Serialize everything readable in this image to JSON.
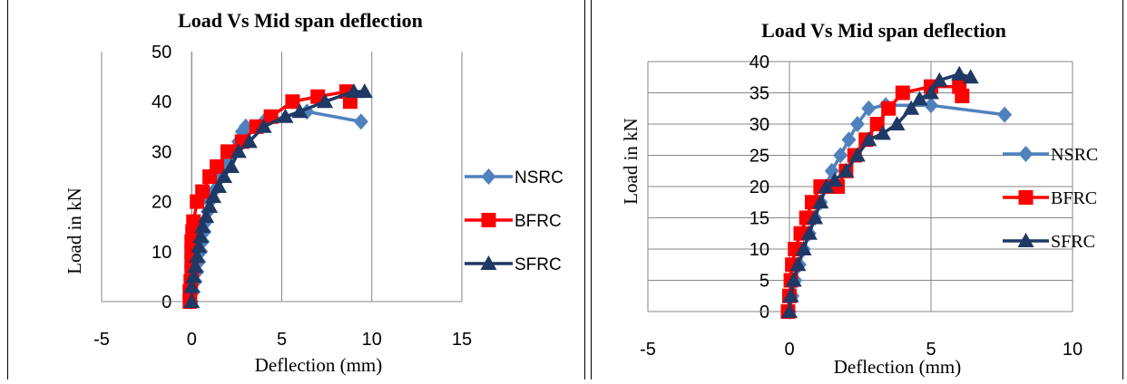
{
  "chart_data": [
    {
      "type": "scatter",
      "title": "Load Vs Mid span deflection",
      "xlabel": "Deflection (mm)",
      "ylabel": "Load in kN",
      "xlim": [
        -5,
        15
      ],
      "ylim": [
        0,
        50
      ],
      "xticks": [
        -5,
        0,
        5,
        10,
        15
      ],
      "yticks": [
        0,
        10,
        20,
        30,
        40,
        50
      ],
      "grid": "vertical",
      "legend_position": "right",
      "series": [
        {
          "name": "NSRC",
          "color": "#4f81bd",
          "marker": "diamond",
          "x": [
            0,
            0.1,
            0.2,
            0.3,
            0.4,
            0.5,
            0.6,
            0.7,
            0.8,
            0.9,
            1.0,
            1.2,
            1.4,
            1.7,
            2.0,
            2.3,
            2.6,
            2.8,
            3.0,
            4.0,
            6.4,
            9.4
          ],
          "y": [
            0,
            2,
            4,
            6,
            8,
            10,
            12,
            14,
            16,
            18,
            20,
            22,
            24,
            26,
            28,
            30,
            32,
            34,
            35,
            36,
            38,
            36
          ]
        },
        {
          "name": "BFRC",
          "color": "#ff0000",
          "marker": "square",
          "x": [
            -0.1,
            -0.1,
            -0.05,
            0,
            0,
            0,
            0,
            0.05,
            0.1,
            0.3,
            0.6,
            1.0,
            1.4,
            2.0,
            2.8,
            3.6,
            4.4,
            5.6,
            7.0,
            8.6,
            8.8
          ],
          "y": [
            0,
            2,
            4,
            6,
            8,
            10,
            12,
            14,
            16,
            20,
            22,
            25,
            27,
            30,
            32,
            35,
            37,
            40,
            41,
            42,
            40
          ]
        },
        {
          "name": "SFRC",
          "color": "#1f3864",
          "marker": "triangle",
          "x": [
            0,
            0,
            0.1,
            0.2,
            0.3,
            0.4,
            0.5,
            0.6,
            0.8,
            1.0,
            1.2,
            1.5,
            1.8,
            2.2,
            2.6,
            3.2,
            4.0,
            5.2,
            6.0,
            7.4,
            9.0,
            9.6
          ],
          "y": [
            0,
            3,
            5,
            7,
            9,
            11,
            13,
            15,
            17,
            19,
            21,
            23,
            25,
            27,
            30,
            32,
            35,
            37,
            38,
            40,
            42,
            42
          ]
        }
      ]
    },
    {
      "type": "scatter",
      "title": "Load Vs Mid span deflection",
      "xlabel": "Deflection (mm)",
      "ylabel": "Load in kN",
      "xlim": [
        -5,
        10
      ],
      "ylim": [
        0,
        40
      ],
      "xticks": [
        -5,
        0,
        5,
        10
      ],
      "yticks": [
        0,
        5,
        10,
        15,
        20,
        25,
        30,
        35,
        40
      ],
      "grid": "both",
      "legend_position": "right",
      "series": [
        {
          "name": "NSRC",
          "color": "#4f81bd",
          "marker": "diamond",
          "x": [
            0,
            0.1,
            0.2,
            0.35,
            0.5,
            0.7,
            0.9,
            1.1,
            1.3,
            1.5,
            1.8,
            2.1,
            2.4,
            2.8,
            3.4,
            5.0,
            7.6
          ],
          "y": [
            0,
            2.5,
            5,
            7.5,
            10,
            12.5,
            15,
            17.5,
            20,
            22.5,
            25,
            27.5,
            30,
            32.5,
            33,
            33,
            31.5
          ]
        },
        {
          "name": "BFRC",
          "color": "#ff0000",
          "marker": "square",
          "x": [
            -0.05,
            0,
            0.05,
            0.1,
            0.2,
            0.4,
            0.6,
            0.8,
            1.1,
            1.4,
            1.7,
            2.0,
            2.3,
            2.7,
            3.1,
            3.5,
            4.0,
            5.0,
            6.0,
            6.1
          ],
          "y": [
            0,
            2.5,
            5,
            7.5,
            10,
            12.5,
            15,
            17.5,
            20,
            20,
            20,
            22.5,
            25,
            27.5,
            30,
            32.5,
            35,
            36,
            36,
            34.5
          ]
        },
        {
          "name": "SFRC",
          "color": "#1f3864",
          "marker": "triangle",
          "x": [
            0,
            0.05,
            0.15,
            0.3,
            0.5,
            0.7,
            0.9,
            1.1,
            1.3,
            1.6,
            2.0,
            2.4,
            2.8,
            3.3,
            3.8,
            4.3,
            4.6,
            5.0,
            5.3,
            6.0,
            6.4
          ],
          "y": [
            0,
            2.5,
            5,
            7.5,
            10,
            12.5,
            15,
            17.5,
            20,
            21,
            22.5,
            25,
            27.5,
            28.5,
            30,
            32.5,
            34,
            35,
            37,
            38,
            37.5
          ]
        }
      ]
    }
  ]
}
